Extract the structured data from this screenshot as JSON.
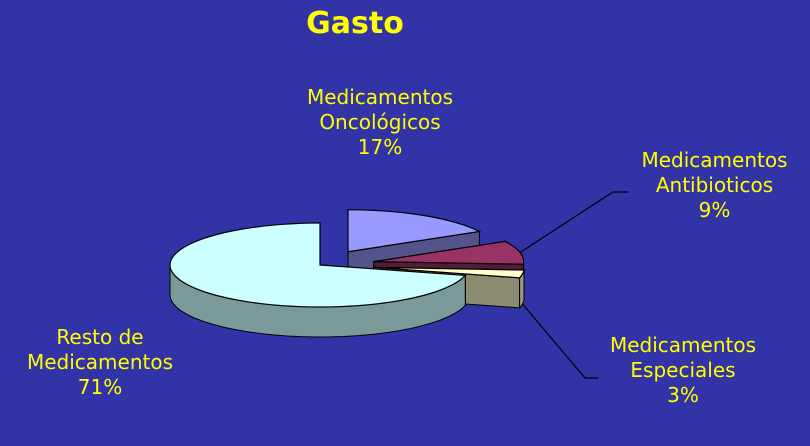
{
  "chart_data": {
    "type": "pie",
    "title": "Gasto",
    "categories": [
      "Medicamentos Oncológicos",
      "Medicamentos Antibioticos",
      "Medicamentos Especiales",
      "Resto de Medicamentos"
    ],
    "values": [
      17,
      9,
      3,
      71
    ],
    "value_labels": [
      "17%",
      "9%",
      "3%",
      "71%"
    ],
    "colors": [
      "#9999ff",
      "#993366",
      "#ffffcc",
      "#ccffff"
    ]
  }
}
